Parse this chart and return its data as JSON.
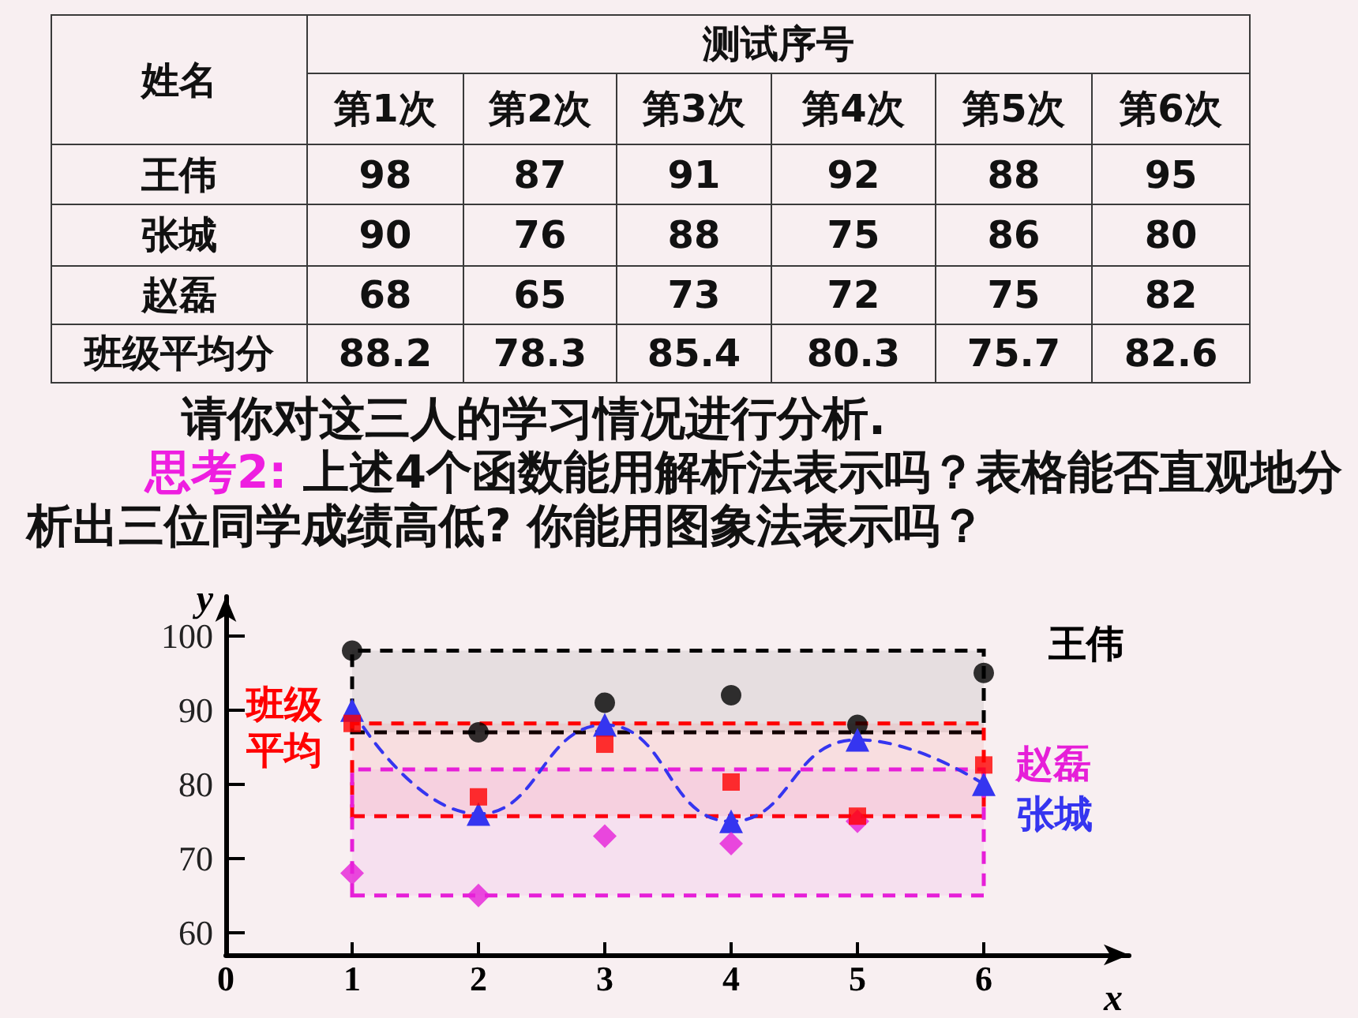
{
  "chart_data": [
    {
      "type": "other",
      "ylabel": "姓名",
      "xlabel": "测试序号",
      "categories": [
        "第1次",
        "第2次",
        "第3次",
        "第4次",
        "第5次",
        "第6次"
      ],
      "data_labels": true,
      "series": [
        {
          "name": "王伟",
          "values": [
            98,
            87,
            91,
            92,
            88,
            95
          ]
        },
        {
          "name": "张城",
          "values": [
            90,
            76,
            88,
            75,
            86,
            80
          ]
        },
        {
          "name": "赵磊",
          "values": [
            68,
            65,
            73,
            72,
            75,
            82
          ]
        },
        {
          "name": "班级平均分",
          "values": [
            88.2,
            78.3,
            85.4,
            80.3,
            75.7,
            82.6
          ]
        }
      ],
      "annotations": [
        "请你对这三人的学习情况进行分析.",
        "思考2: 上述4个函数能用解析法表示吗？表格能否直观地分析出三位同学成绩高低? 你能用图象法表示吗？"
      ]
    },
    {
      "type": "scatter",
      "xlabel": "x",
      "ylabel": "y",
      "x": [
        1,
        2,
        3,
        4,
        5,
        6
      ],
      "xlim": [
        0,
        7.15
      ],
      "xticks": [
        {
          "value": 0,
          "label": "0"
        },
        1,
        2,
        3,
        4,
        5,
        6
      ],
      "ylim": [
        57,
        105.3
      ],
      "yticks": [
        60,
        70,
        80,
        90,
        100
      ],
      "series": [
        {
          "name": "王伟",
          "color": "#000000",
          "marker": "circle",
          "values": [
            98,
            87,
            91,
            92,
            88,
            95
          ]
        },
        {
          "name": "张城",
          "type": "line",
          "color": "#3535f0",
          "marker": "triangle",
          "line_style": "dashed",
          "values": [
            90,
            76,
            88,
            75,
            86,
            80
          ]
        },
        {
          "name": "赵磊",
          "color": "#e61fd8",
          "marker": "diamond",
          "values": [
            68,
            65,
            73,
            72,
            75,
            null
          ]
        },
        {
          "name": "班级平均",
          "color": "#ff0000",
          "marker": "square",
          "values": [
            88.2,
            78.3,
            85.4,
            80.3,
            75.7,
            82.6
          ]
        }
      ],
      "bands": [
        {
          "axis": "y",
          "from": 87,
          "to": 98,
          "color": "#000000"
        },
        {
          "axis": "y",
          "from": 75.7,
          "to": 88.2,
          "color": "#ff0000"
        },
        {
          "axis": "y",
          "from": 65,
          "to": 82,
          "color": "#e61fd8"
        }
      ]
    }
  ]
}
